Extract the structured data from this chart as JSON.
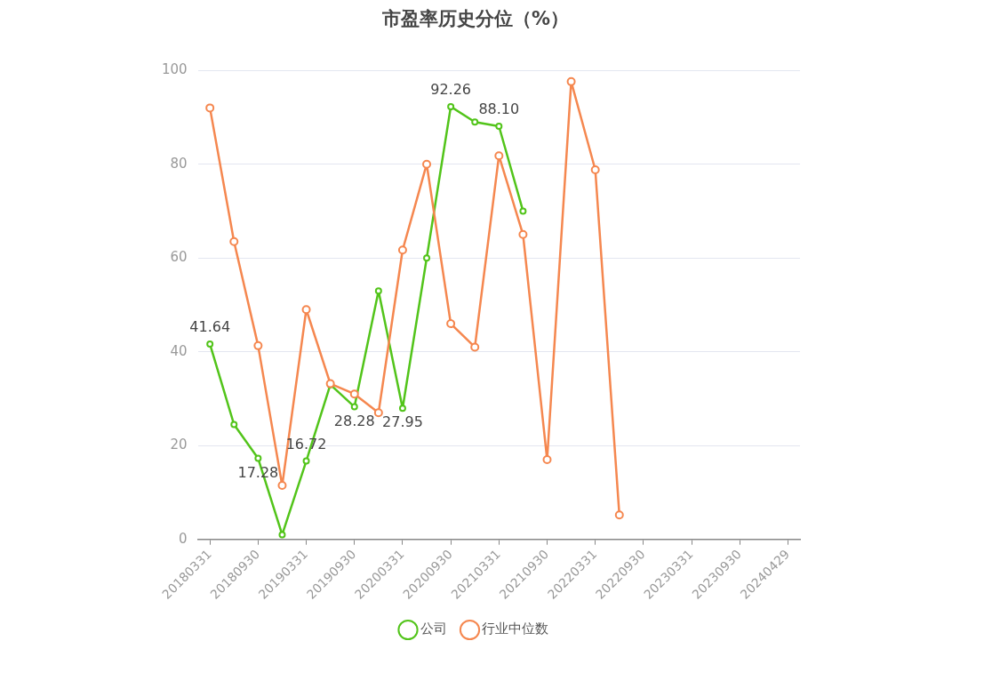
{
  "chart_data": {
    "type": "line",
    "title": "市盈率历史分位（%）",
    "categories": [
      "20180331",
      null,
      "20180930",
      null,
      "20190331",
      null,
      "20190930",
      null,
      "20200331",
      null,
      "20200930",
      null,
      "20210331",
      null,
      "20210930",
      null,
      "20220331",
      null,
      "20220930",
      null,
      "20230331",
      null,
      "20230930",
      null,
      "20240429"
    ],
    "series": [
      {
        "name": "公司",
        "color": "#52c41a",
        "values": [
          41.64,
          24.5,
          17.28,
          1,
          16.72,
          33,
          28.28,
          53,
          27.95,
          60,
          92.26,
          89,
          88.1,
          70,
          null,
          null,
          null,
          null,
          null,
          null,
          null,
          null,
          null,
          null,
          null
        ],
        "value_labels": [
          "41.64",
          null,
          "17.28",
          null,
          "16.72",
          null,
          "28.28",
          null,
          "27.95",
          null,
          "92.26",
          null,
          "88.10",
          null,
          null,
          null,
          null,
          null,
          null,
          null,
          null,
          null,
          null,
          null,
          null
        ]
      },
      {
        "name": "行业中位数",
        "color": "#f5874f",
        "values": [
          92,
          63.5,
          41.3,
          11.5,
          49,
          33.2,
          31,
          27,
          61.7,
          80,
          46,
          41,
          81.8,
          65,
          17,
          97.6,
          78.8,
          5.2,
          null,
          null,
          null,
          null,
          null,
          null,
          null
        ]
      }
    ],
    "ylim": [
      0,
      100
    ],
    "yticks": [
      0,
      20,
      40,
      60,
      80,
      100
    ],
    "grid": "y",
    "legend": "bottom",
    "marker": "circle",
    "line_style": "solid"
  }
}
